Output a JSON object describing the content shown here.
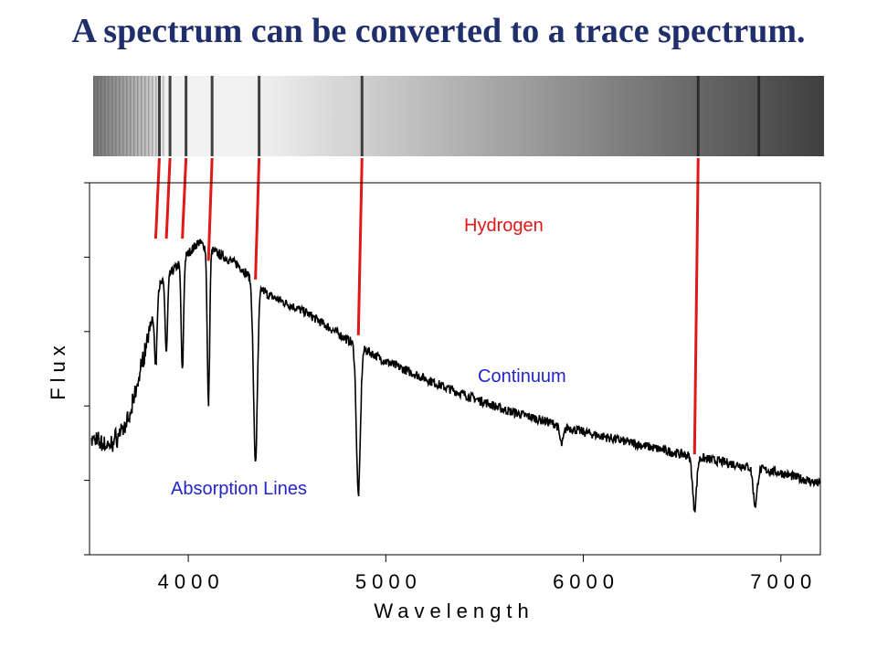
{
  "title": "A spectrum can be converted to a trace spectrum.",
  "colors": {
    "title": "#1f2f6b",
    "marker": "#e01818",
    "hydrogen_label": "#e01818",
    "blue_label": "#2424c8",
    "trace": "#000000",
    "axis": "#000000"
  },
  "chart_data": {
    "type": "line",
    "title": "",
    "xlabel": "Wavelength",
    "ylabel": "Flux",
    "xlim": [
      3500,
      7200
    ],
    "ylim": [
      0,
      1
    ],
    "x_ticks": [
      4000,
      5000,
      6000,
      7000
    ],
    "x_tick_labels": [
      "4000",
      "5000",
      "6000",
      "7000"
    ],
    "y_ticks": [
      0,
      0.2,
      0.4,
      0.6,
      0.8,
      1.0
    ],
    "y_tick_labels_shown": false,
    "grid": false,
    "continuum_points": [
      [
        3520,
        0.31
      ],
      [
        3600,
        0.29
      ],
      [
        3700,
        0.36
      ],
      [
        3760,
        0.5
      ],
      [
        3850,
        0.72
      ],
      [
        3950,
        0.78
      ],
      [
        4050,
        0.84
      ],
      [
        4150,
        0.81
      ],
      [
        4250,
        0.78
      ],
      [
        4400,
        0.7
      ],
      [
        4600,
        0.65
      ],
      [
        4800,
        0.58
      ],
      [
        5000,
        0.52
      ],
      [
        5300,
        0.45
      ],
      [
        5600,
        0.39
      ],
      [
        6000,
        0.33
      ],
      [
        6500,
        0.27
      ],
      [
        7000,
        0.22
      ],
      [
        7200,
        0.19
      ]
    ],
    "absorption_lines": [
      {
        "wavelength": 3835,
        "depth": 0.18
      },
      {
        "wavelength": 3889,
        "depth": 0.2
      },
      {
        "wavelength": 3970,
        "depth": 0.3
      },
      {
        "wavelength": 4102,
        "depth": 0.42
      },
      {
        "wavelength": 4340,
        "depth": 0.48
      },
      {
        "wavelength": 4861,
        "depth": 0.4
      },
      {
        "wavelength": 5890,
        "depth": 0.05
      },
      {
        "wavelength": 6563,
        "depth": 0.14
      },
      {
        "wavelength": 6870,
        "depth": 0.1
      }
    ],
    "annotations": {
      "hydrogen": "Hydrogen",
      "continuum": "Continuum",
      "absorption": "Absorption Lines"
    }
  },
  "band": {
    "dark_lines": [
      3835,
      3889,
      3970,
      4102,
      4340,
      4861,
      6563,
      6870
    ]
  },
  "hydrogen_markers": [
    {
      "wavelength": 3835,
      "to_flux": 0.85
    },
    {
      "wavelength": 3889,
      "to_flux": 0.85
    },
    {
      "wavelength": 3970,
      "to_flux": 0.85
    },
    {
      "wavelength": 4102,
      "to_flux": 0.79
    },
    {
      "wavelength": 4340,
      "to_flux": 0.74
    },
    {
      "wavelength": 4861,
      "to_flux": 0.59
    },
    {
      "wavelength": 6563,
      "to_flux": 0.27
    }
  ]
}
